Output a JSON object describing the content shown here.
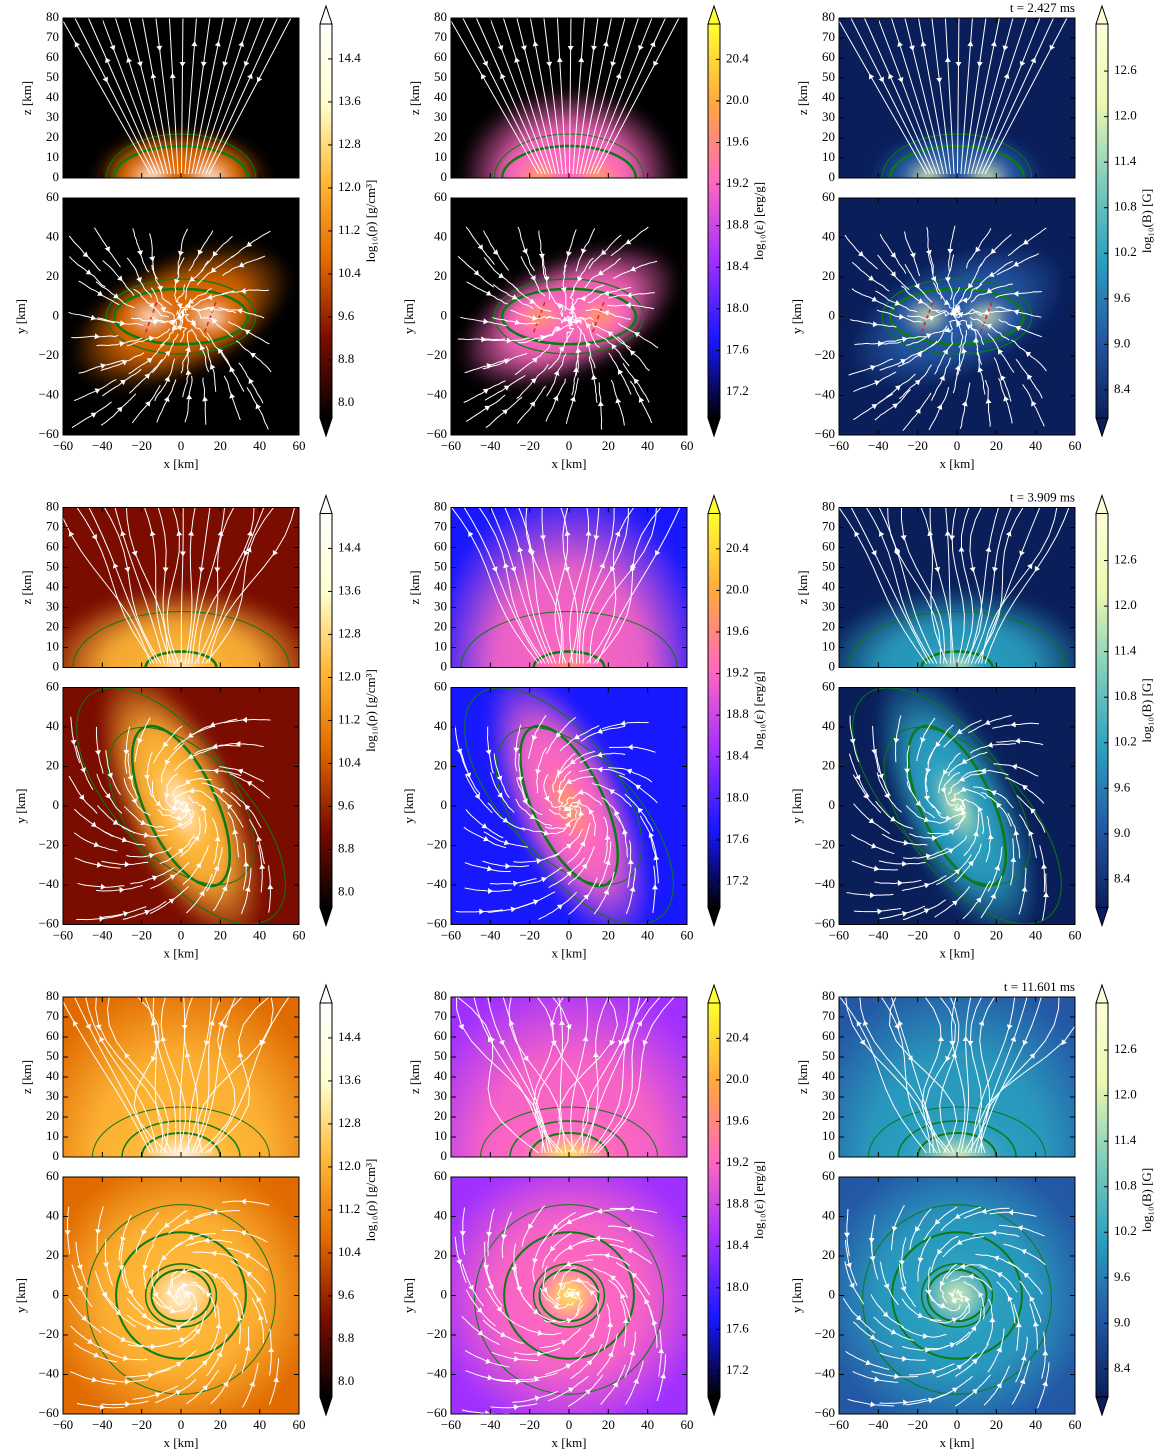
{
  "chart_data": {
    "type": "heatmap",
    "times": [
      "t = 2.427 ms",
      "t = 3.909 ms",
      "t = 11.601 ms"
    ],
    "xlabel": "x [km]",
    "zlabel": "z [km]",
    "ylabel": "y [km]",
    "xlim": [
      -60,
      60
    ],
    "xticks": [
      {
        "value": -60,
        "label": "−60"
      },
      {
        "value": -40,
        "label": "−40"
      },
      {
        "value": -20,
        "label": "−20"
      },
      0,
      20,
      40,
      60
    ],
    "zlim": [
      0,
      80
    ],
    "zticks": [
      0,
      10,
      20,
      30,
      40,
      50,
      60,
      70,
      80
    ],
    "ylim": [
      -60,
      60
    ],
    "yticks": [
      {
        "value": -60,
        "label": "−60"
      },
      {
        "value": -40,
        "label": "−40"
      },
      {
        "value": -20,
        "label": "−20"
      },
      0,
      20,
      40,
      60
    ],
    "colorbars": [
      {
        "label": "log₁₀(ρ) [g/cm³]",
        "lim": [
          7.72,
          15.05
        ],
        "ticks": [
          {
            "value": 8,
            "label": "8.0"
          },
          8.8,
          9.6,
          10.4,
          11.2,
          {
            "value": 12,
            "label": "12.0"
          },
          12.8,
          13.6,
          14.4
        ],
        "colors": [
          "#000000",
          "#7a0c00",
          "#e06a00",
          "#ffb838",
          "#ffffd0",
          "#ffffff"
        ]
      },
      {
        "label": "log₁₀(ε) [erg/g]",
        "lim": [
          16.95,
          20.74
        ],
        "ticks": [
          17.2,
          17.6,
          {
            "value": 18,
            "label": "18.0"
          },
          18.4,
          18.8,
          19.2,
          19.6,
          {
            "value": 20,
            "label": "20.0"
          },
          20.4
        ],
        "colors": [
          "#000000",
          "#1818ff",
          "#a030ff",
          "#ff68c0",
          "#ffa840",
          "#ffff30"
        ]
      },
      {
        "label": "log₁₀(B) [G]",
        "lim": [
          8.03,
          13.22
        ],
        "ticks": [
          8.4,
          {
            "value": 9,
            "label": "9.0"
          },
          9.6,
          10.2,
          10.8,
          11.4,
          {
            "value": 12,
            "label": "12.0"
          },
          12.6
        ],
        "colors": [
          "#0a1e5a",
          "#2458a5",
          "#2aa0c0",
          "#7fcdbb",
          "#edf8b1",
          "#ffffd9"
        ]
      }
    ],
    "contour_color": "#0b7a12",
    "streamline_color": "#ffffff",
    "extend": "both"
  }
}
